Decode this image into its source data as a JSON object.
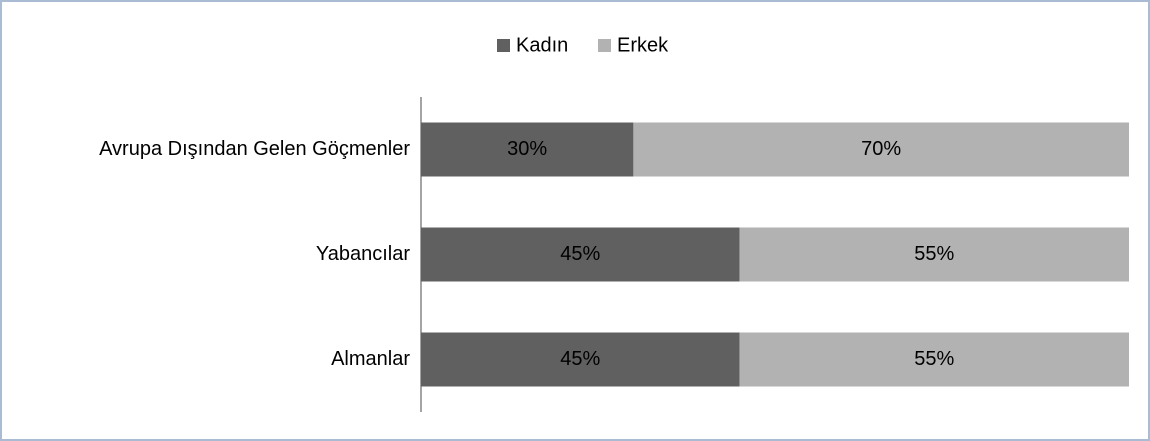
{
  "chart_data": {
    "type": "stacked_bar_horizontal",
    "categories": [
      "Avrupa Dışından Gelen Göçmenler",
      "Yabancılar",
      "Almanlar"
    ],
    "series": [
      {
        "name": "Kadın",
        "color": "#606060",
        "values": [
          30,
          45,
          45
        ],
        "value_labels": [
          "30%",
          "45%",
          "45%"
        ]
      },
      {
        "name": "Erkek",
        "color": "#b2b2b2",
        "values": [
          70,
          55,
          55
        ],
        "value_labels": [
          "70%",
          "55%",
          "55%"
        ]
      }
    ],
    "xlim": [
      0,
      100
    ],
    "legend": "top"
  }
}
